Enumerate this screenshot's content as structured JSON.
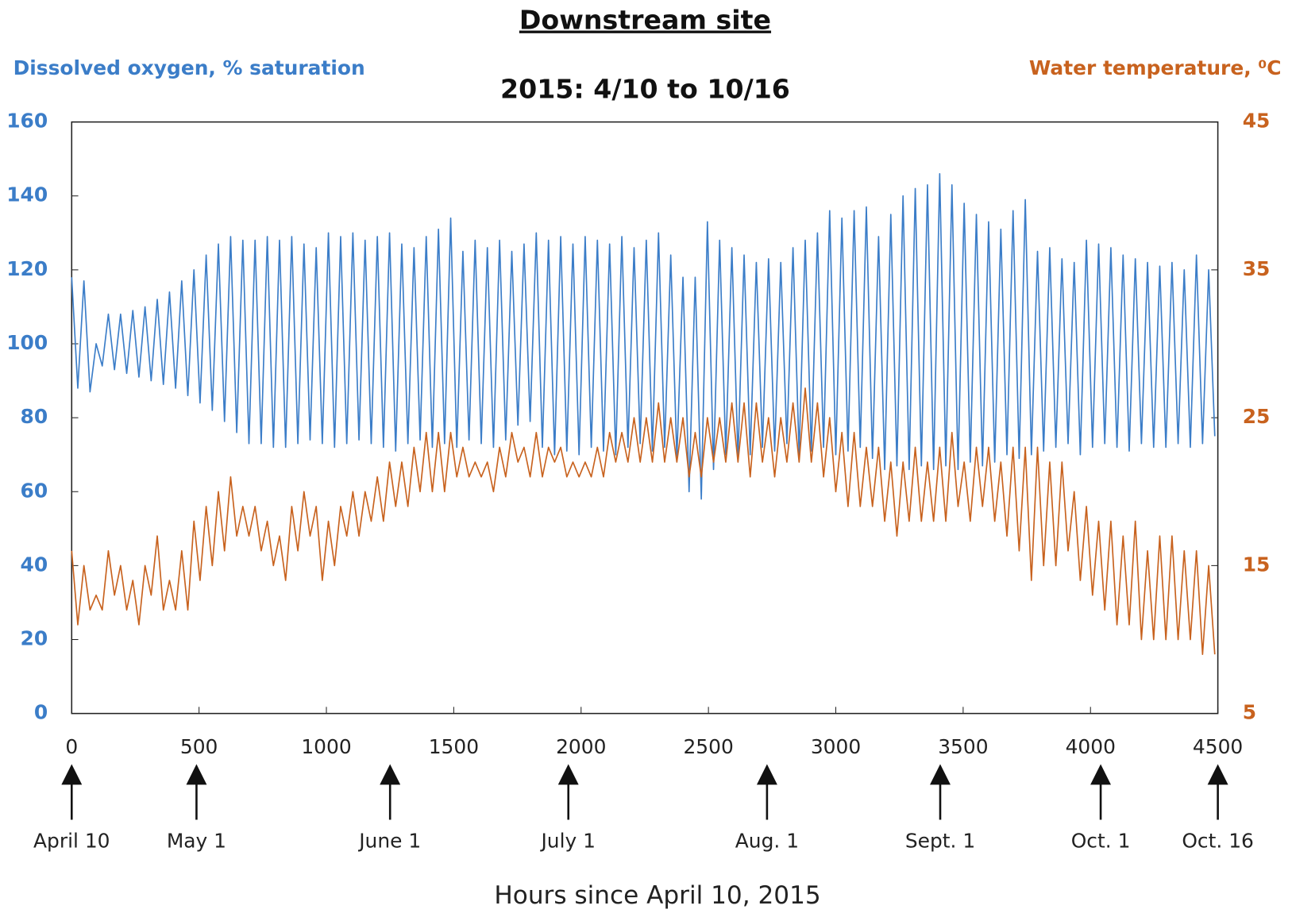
{
  "chart_data": {
    "type": "line",
    "title": "Downstream site",
    "subtitle": "2015: 4/10 to 10/16",
    "x_label": "Hours since April 10, 2015",
    "y_label": "Dissolved oxygen, % saturation",
    "y2_label": "Water temperature, ⁰C",
    "xlim": [
      0,
      4500
    ],
    "xticks": [
      0,
      500,
      1000,
      1500,
      2000,
      2500,
      3000,
      3500,
      4000,
      4500
    ],
    "ylim": [
      0,
      160
    ],
    "yticks": [
      0,
      20,
      40,
      60,
      80,
      100,
      120,
      140,
      160
    ],
    "y2lim": [
      5,
      45
    ],
    "y2ticks": [
      5,
      15,
      25,
      35,
      45
    ],
    "annotations": [
      {
        "text": "April 10",
        "x": 0
      },
      {
        "text": "May 1",
        "x": 490
      },
      {
        "text": "June 1",
        "x": 1250
      },
      {
        "text": "July 1",
        "x": 1950
      },
      {
        "text": "Aug. 1",
        "x": 2730
      },
      {
        "text": "Sept. 1",
        "x": 3410
      },
      {
        "text": "Oct. 1",
        "x": 4040
      },
      {
        "text": "Oct. 16",
        "x": 4500
      }
    ],
    "x": [
      0,
      24,
      48,
      72,
      96,
      120,
      144,
      168,
      192,
      216,
      240,
      264,
      288,
      312,
      336,
      360,
      384,
      408,
      432,
      456,
      480,
      504,
      528,
      552,
      576,
      600,
      624,
      648,
      672,
      696,
      720,
      744,
      768,
      792,
      816,
      840,
      864,
      888,
      912,
      936,
      960,
      984,
      1008,
      1032,
      1056,
      1080,
      1104,
      1128,
      1152,
      1176,
      1200,
      1224,
      1248,
      1272,
      1296,
      1320,
      1344,
      1368,
      1392,
      1416,
      1440,
      1464,
      1488,
      1512,
      1536,
      1560,
      1584,
      1608,
      1632,
      1656,
      1680,
      1704,
      1728,
      1752,
      1776,
      1800,
      1824,
      1848,
      1872,
      1896,
      1920,
      1944,
      1968,
      1992,
      2016,
      2040,
      2064,
      2088,
      2112,
      2136,
      2160,
      2184,
      2208,
      2232,
      2256,
      2280,
      2304,
      2328,
      2352,
      2376,
      2400,
      2424,
      2448,
      2472,
      2496,
      2520,
      2544,
      2568,
      2592,
      2616,
      2640,
      2664,
      2688,
      2712,
      2736,
      2760,
      2784,
      2808,
      2832,
      2856,
      2880,
      2904,
      2928,
      2952,
      2976,
      3000,
      3024,
      3048,
      3072,
      3096,
      3120,
      3144,
      3168,
      3192,
      3216,
      3240,
      3264,
      3288,
      3312,
      3336,
      3360,
      3384,
      3408,
      3432,
      3456,
      3480,
      3504,
      3528,
      3552,
      3576,
      3600,
      3624,
      3648,
      3672,
      3696,
      3720,
      3744,
      3768,
      3792,
      3816,
      3840,
      3864,
      3888,
      3912,
      3936,
      3960,
      3984,
      4008,
      4032,
      4056,
      4080,
      4104,
      4128,
      4152,
      4176,
      4200,
      4224,
      4248,
      4272,
      4296,
      4320,
      4344,
      4368,
      4392,
      4416,
      4440,
      4464,
      4488
    ],
    "series": [
      {
        "name": "Dissolved oxygen",
        "color": "#3b7dc8",
        "axis": "y",
        "values": [
          118,
          88,
          117,
          87,
          100,
          94,
          108,
          93,
          108,
          92,
          109,
          91,
          110,
          90,
          112,
          89,
          114,
          88,
          117,
          86,
          120,
          84,
          124,
          82,
          127,
          79,
          129,
          76,
          128,
          73,
          128,
          73,
          129,
          72,
          128,
          72,
          129,
          73,
          127,
          74,
          126,
          73,
          130,
          72,
          129,
          73,
          130,
          74,
          128,
          73,
          129,
          72,
          130,
          71,
          127,
          73,
          126,
          74,
          129,
          72,
          131,
          73,
          134,
          72,
          125,
          74,
          128,
          73,
          126,
          72,
          128,
          74,
          125,
          78,
          127,
          79,
          130,
          72,
          128,
          70,
          129,
          71,
          127,
          70,
          129,
          72,
          128,
          71,
          127,
          70,
          129,
          72,
          126,
          73,
          128,
          71,
          130,
          72,
          124,
          69,
          118,
          60,
          118,
          58,
          133,
          66,
          128,
          70,
          126,
          69,
          124,
          70,
          122,
          72,
          123,
          71,
          122,
          73,
          126,
          70,
          128,
          71,
          130,
          72,
          136,
          70,
          134,
          71,
          136,
          72,
          137,
          69,
          129,
          66,
          135,
          67,
          140,
          66,
          142,
          67,
          143,
          66,
          146,
          67,
          143,
          66,
          138,
          68,
          135,
          67,
          133,
          68,
          131,
          70,
          136,
          69,
          139,
          70,
          125,
          71,
          126,
          72,
          123,
          73,
          122,
          70,
          128,
          72,
          127,
          73,
          126,
          72,
          124,
          71,
          123,
          73,
          122,
          72,
          121,
          72,
          122,
          73,
          120,
          72,
          124,
          73,
          120,
          75
        ]
      },
      {
        "name": "Water temperature",
        "color": "#c8621e",
        "axis": "y2",
        "values": [
          16,
          11,
          15,
          12,
          13,
          12,
          16,
          13,
          15,
          12,
          14,
          11,
          15,
          13,
          17,
          12,
          14,
          12,
          16,
          12,
          18,
          14,
          19,
          15,
          20,
          16,
          21,
          17,
          19,
          17,
          19,
          16,
          18,
          15,
          17,
          14,
          19,
          16,
          20,
          17,
          19,
          14,
          18,
          15,
          19,
          17,
          20,
          17,
          20,
          18,
          21,
          18,
          22,
          19,
          22,
          19,
          23,
          20,
          24,
          20,
          24,
          20,
          24,
          21,
          23,
          21,
          22,
          21,
          22,
          20,
          23,
          21,
          24,
          22,
          23,
          21,
          24,
          21,
          23,
          22,
          23,
          21,
          22,
          21,
          22,
          21,
          23,
          21,
          24,
          22,
          24,
          22,
          25,
          22,
          25,
          22,
          26,
          22,
          25,
          22,
          25,
          21,
          24,
          21,
          25,
          22,
          25,
          22,
          26,
          22,
          26,
          21,
          26,
          22,
          25,
          21,
          25,
          22,
          26,
          22,
          27,
          22,
          26,
          21,
          25,
          20,
          24,
          19,
          24,
          19,
          23,
          19,
          23,
          18,
          22,
          17,
          22,
          18,
          23,
          18,
          22,
          18,
          23,
          18,
          24,
          19,
          22,
          18,
          23,
          19,
          23,
          18,
          22,
          17,
          23,
          16,
          23,
          14,
          23,
          15,
          22,
          15,
          22,
          16,
          20,
          14,
          19,
          13,
          18,
          12,
          18,
          11,
          17,
          11,
          18,
          10,
          16,
          10,
          17,
          10,
          17,
          10,
          16,
          10,
          16,
          9,
          15,
          9
        ]
      }
    ]
  }
}
